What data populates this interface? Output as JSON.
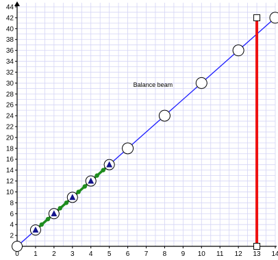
{
  "chart_data": {
    "type": "scatter",
    "title": "",
    "annotation": "Balance beam",
    "xlim": [
      0,
      14
    ],
    "ylim": [
      0,
      44
    ],
    "x_ticks": [
      0,
      1,
      2,
      3,
      4,
      5,
      6,
      7,
      8,
      9,
      10,
      11,
      12,
      13,
      14
    ],
    "y_ticks": [
      2,
      4,
      6,
      8,
      10,
      12,
      14,
      16,
      18,
      20,
      22,
      24,
      26,
      28,
      30,
      32,
      34,
      36,
      38,
      40,
      42,
      44
    ],
    "y_tick_labels": [
      "2",
      "4",
      "6",
      "8",
      "10",
      "12",
      "14",
      "16",
      "18",
      "20",
      "22",
      "24",
      "26",
      "28",
      "30",
      "32",
      "34",
      "36",
      "38",
      "40",
      "42",
      "44"
    ],
    "x_tick_labels": [
      "0",
      "1",
      "2",
      "3",
      "4",
      "5",
      "6",
      "7",
      "8",
      "9",
      "10",
      "11",
      "12",
      "13",
      "14"
    ],
    "grid": true,
    "line": {
      "x": [
        0,
        14
      ],
      "y": [
        0,
        42
      ],
      "color": "#1a1aff"
    },
    "circles": {
      "x": [
        0,
        1,
        2,
        3,
        4,
        5,
        6,
        8,
        10,
        12,
        14
      ],
      "y": [
        0,
        3,
        6,
        9,
        12,
        15,
        18,
        24,
        30,
        36,
        42
      ]
    },
    "triangles": {
      "x": [
        1,
        2,
        3,
        4,
        5
      ],
      "y": [
        3,
        6,
        9,
        12,
        15
      ],
      "color": "#14148c"
    },
    "green_segments": [
      [
        1,
        2
      ],
      [
        2,
        3
      ],
      [
        3,
        4
      ],
      [
        4,
        5
      ]
    ],
    "green_dots": {
      "x": [
        1.33,
        1.67,
        2.33,
        2.67,
        3.33,
        3.67,
        4.33,
        4.67
      ],
      "y": [
        4,
        5,
        7,
        8,
        10,
        11,
        13,
        14
      ]
    },
    "green_color": "#1e8c1e",
    "beam": {
      "x": 13,
      "y": [
        0,
        42
      ],
      "color": "#ee1111"
    },
    "grid_color": "#d4d4f5"
  }
}
